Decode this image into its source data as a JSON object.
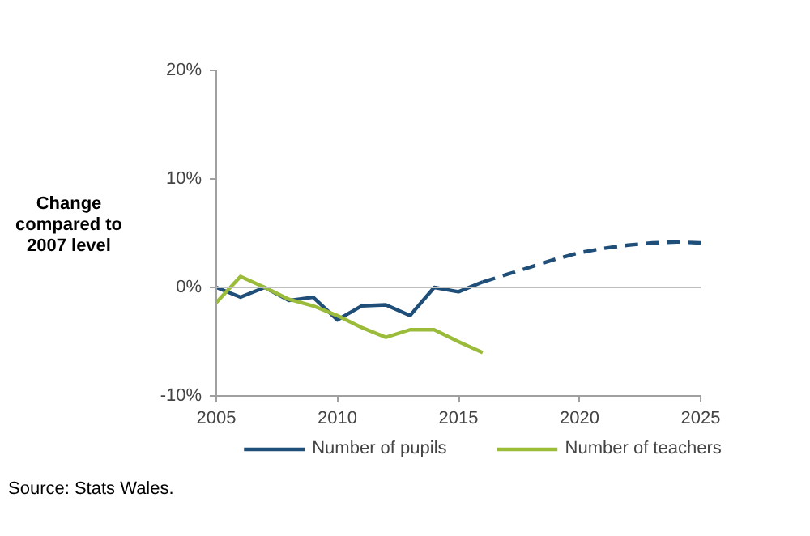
{
  "chart_data": {
    "type": "line",
    "ylabel": "Change compared to 2007 level",
    "annotations": [
      "Source: Stats Wales."
    ],
    "xlim": [
      2005,
      2025
    ],
    "xticks": [
      2005,
      2010,
      2015,
      2020,
      2025
    ],
    "ylim": [
      -10,
      20
    ],
    "yticks": [
      {
        "value": -10,
        "label": "-10%"
      },
      {
        "value": 0,
        "label": "0%"
      },
      {
        "value": 10,
        "label": "10%"
      },
      {
        "value": 20,
        "label": "20%"
      }
    ],
    "grid": false,
    "legend": "bottom",
    "marker": "none",
    "ref_lines": [
      {
        "axis": "y",
        "value": 0,
        "color": "#bfbfbf"
      }
    ],
    "series": [
      {
        "name": "Number of pupils",
        "color": "#1f4e79",
        "line_style": "solid",
        "x": [
          2005,
          2006,
          2007,
          2008,
          2009,
          2010,
          2011,
          2012,
          2013,
          2014,
          2015,
          2016
        ],
        "values": [
          0,
          -0.9,
          0,
          -1.2,
          -0.9,
          -3.0,
          -1.7,
          -1.6,
          -2.6,
          0,
          -0.4,
          0.5
        ]
      },
      {
        "color": "#1f4e79",
        "line_style": "dashed",
        "x": [
          2016,
          2017,
          2018,
          2019,
          2020,
          2021,
          2022,
          2023,
          2024,
          2025
        ],
        "values": [
          0.5,
          1.2,
          1.9,
          2.6,
          3.2,
          3.6,
          3.9,
          4.1,
          4.2,
          4.1
        ]
      },
      {
        "name": "Number of teachers",
        "color": "#9bbb3b",
        "line_style": "solid",
        "x": [
          2005,
          2006,
          2007,
          2008,
          2009,
          2010,
          2011,
          2012,
          2013,
          2014,
          2015,
          2016
        ],
        "values": [
          -1.4,
          1.0,
          0,
          -1.1,
          -1.7,
          -2.6,
          -3.7,
          -4.6,
          -3.9,
          -3.9,
          -5.0,
          -6.0
        ]
      }
    ]
  }
}
